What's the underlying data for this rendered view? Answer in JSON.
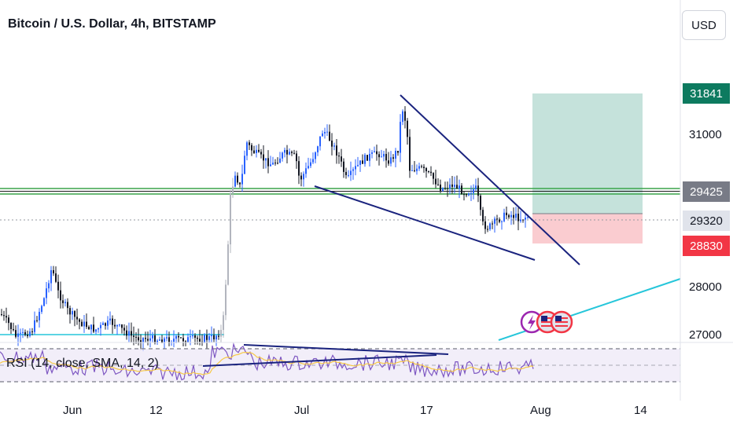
{
  "header": {
    "title": "Bitcoin / U.S. Dollar, 4h, BITSTAMP",
    "currency": "USD"
  },
  "chart_data": {
    "type": "candlestick",
    "symbol": "Bitcoin / U.S. Dollar",
    "interval": "4h",
    "exchange": "BITSTAMP",
    "y_ticks": [
      31000,
      28000,
      27000
    ],
    "x_ticks": [
      "Jun",
      "12",
      "Jul",
      "17",
      "Aug",
      "14"
    ],
    "price_tags": [
      {
        "value": "31841",
        "color": "#0d7a5f"
      },
      {
        "value": "29425",
        "color": "#787b86"
      },
      {
        "value": "29320",
        "color": "#e0e3eb",
        "text_color": "#131722"
      },
      {
        "value": "28830",
        "color": "#f23645"
      }
    ],
    "position": {
      "type": "long",
      "target": 31841,
      "entry": 29425,
      "stop": 28830
    },
    "indicator": {
      "label": "RSI (14, close, SMA, 14, 2)"
    }
  },
  "colors": {
    "candle_up": "#2962ff",
    "candle_down": "#131722",
    "profit": "#b2d8cf",
    "loss": "#f9c6cb",
    "trend": "#1a237e",
    "support": "#26c6da"
  }
}
